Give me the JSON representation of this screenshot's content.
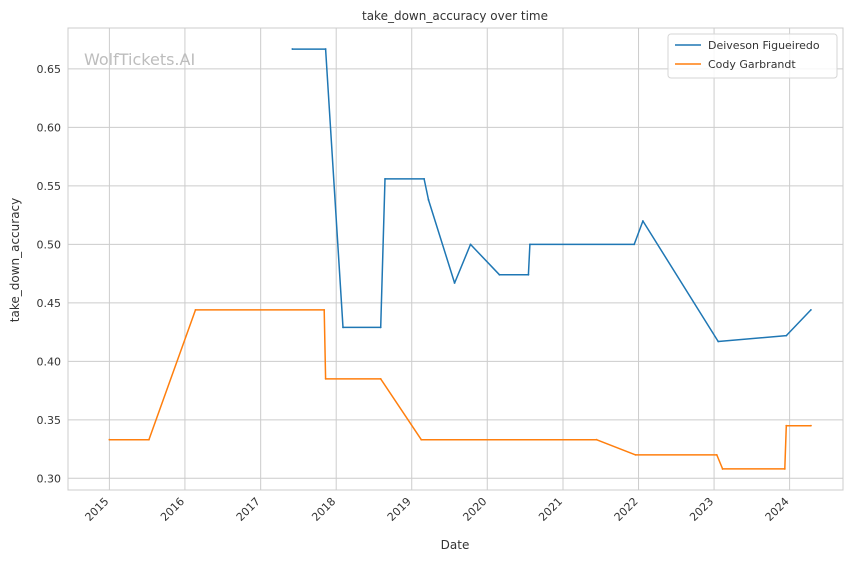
{
  "chart_data": {
    "type": "line",
    "title": "take_down_accuracy over time",
    "xlabel": "Date",
    "ylabel": "take_down_accuracy",
    "watermark": "WolfTickets.AI",
    "xlim": [
      "2014-06-15",
      "2024-09-15"
    ],
    "ylim": [
      0.29,
      0.685
    ],
    "grid": true,
    "legend_position": "top-right",
    "x_ticks": [
      {
        "date": "2015-01-01",
        "label": "2015"
      },
      {
        "date": "2016-01-01",
        "label": "2016"
      },
      {
        "date": "2017-01-01",
        "label": "2017"
      },
      {
        "date": "2018-01-01",
        "label": "2018"
      },
      {
        "date": "2019-01-01",
        "label": "2019"
      },
      {
        "date": "2020-01-01",
        "label": "2020"
      },
      {
        "date": "2021-01-01",
        "label": "2021"
      },
      {
        "date": "2022-01-01",
        "label": "2022"
      },
      {
        "date": "2023-01-01",
        "label": "2023"
      },
      {
        "date": "2024-01-01",
        "label": "2024"
      }
    ],
    "y_ticks": [
      {
        "value": 0.3,
        "label": "0.30"
      },
      {
        "value": 0.35,
        "label": "0.35"
      },
      {
        "value": 0.4,
        "label": "0.40"
      },
      {
        "value": 0.45,
        "label": "0.45"
      },
      {
        "value": 0.5,
        "label": "0.50"
      },
      {
        "value": 0.55,
        "label": "0.55"
      },
      {
        "value": 0.6,
        "label": "0.60"
      },
      {
        "value": 0.65,
        "label": "0.65"
      }
    ],
    "series": [
      {
        "name": "Deiveson Figueiredo",
        "color": "#1f77b4",
        "points": [
          {
            "x": "2017-06-03",
            "y": 0.667
          },
          {
            "x": "2017-11-11",
            "y": 0.667
          },
          {
            "x": "2018-02-03",
            "y": 0.429
          },
          {
            "x": "2018-08-04",
            "y": 0.429
          },
          {
            "x": "2018-08-25",
            "y": 0.556
          },
          {
            "x": "2019-03-02",
            "y": 0.556
          },
          {
            "x": "2019-03-23",
            "y": 0.538
          },
          {
            "x": "2019-07-27",
            "y": 0.467
          },
          {
            "x": "2019-10-12",
            "y": 0.5
          },
          {
            "x": "2020-02-29",
            "y": 0.474
          },
          {
            "x": "2020-07-18",
            "y": 0.474
          },
          {
            "x": "2020-07-25",
            "y": 0.5
          },
          {
            "x": "2021-12-11",
            "y": 0.5
          },
          {
            "x": "2022-01-22",
            "y": 0.52
          },
          {
            "x": "2023-01-21",
            "y": 0.417
          },
          {
            "x": "2023-12-16",
            "y": 0.422
          },
          {
            "x": "2024-04-13",
            "y": 0.444
          }
        ]
      },
      {
        "name": "Cody Garbrandt",
        "color": "#ff7f0e",
        "points": [
          {
            "x": "2015-01-01",
            "y": 0.333
          },
          {
            "x": "2015-07-11",
            "y": 0.333
          },
          {
            "x": "2016-02-21",
            "y": 0.444
          },
          {
            "x": "2017-11-04",
            "y": 0.444
          },
          {
            "x": "2017-11-11",
            "y": 0.385
          },
          {
            "x": "2018-08-04",
            "y": 0.385
          },
          {
            "x": "2019-02-16",
            "y": 0.333
          },
          {
            "x": "2021-06-12",
            "y": 0.333
          },
          {
            "x": "2021-12-18",
            "y": 0.32
          },
          {
            "x": "2023-01-14",
            "y": 0.32
          },
          {
            "x": "2023-02-11",
            "y": 0.308
          },
          {
            "x": "2023-12-09",
            "y": 0.308
          },
          {
            "x": "2023-12-16",
            "y": 0.345
          },
          {
            "x": "2024-04-13",
            "y": 0.345
          }
        ]
      }
    ]
  }
}
